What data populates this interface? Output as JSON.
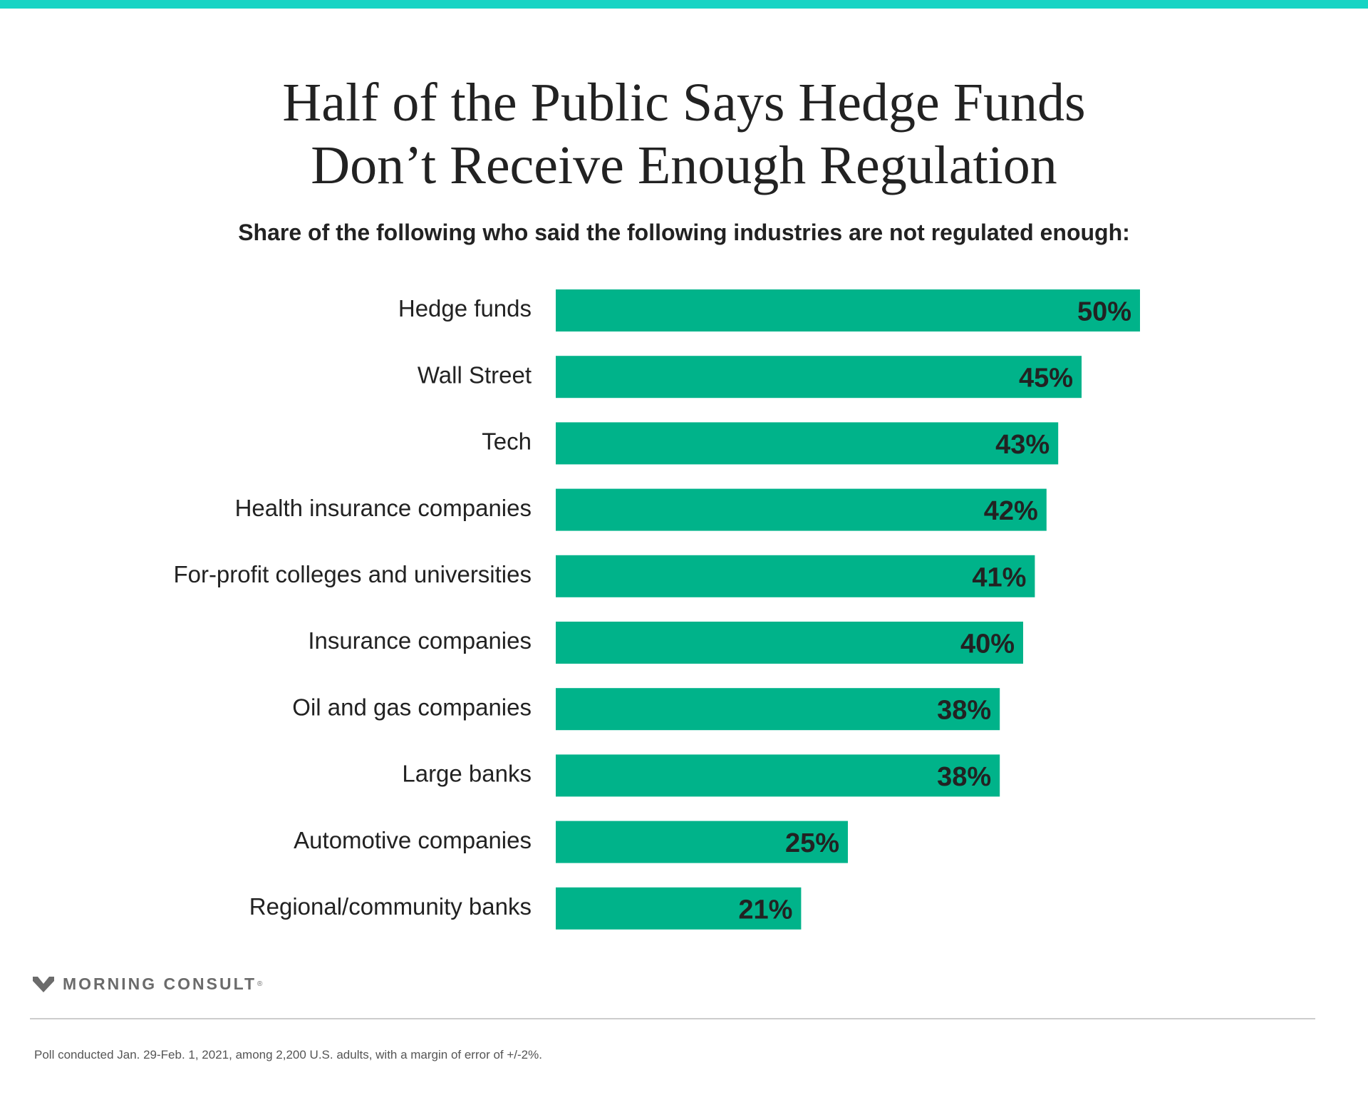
{
  "colors": {
    "accent_top": "#17d4c4",
    "bar": "#00b38a",
    "value_label": "#222222",
    "category_label": "#222222"
  },
  "title_lines": [
    "Half of the Public Says Hedge Funds",
    "Don’t Receive Enough Regulation"
  ],
  "subtitle": "Share of the following who said the following industries are not regulated enough:",
  "brand": {
    "name": "MORNING CONSULT",
    "mark": "®",
    "icon": "morning-consult-logo-icon"
  },
  "footnote": "Poll conducted Jan. 29-Feb. 1, 2021, among 2,200 U.S. adults, with a margin of error of +/-2%.",
  "chart_data": {
    "type": "bar",
    "orientation": "horizontal",
    "title": "Half of the Public Says Hedge Funds Don’t Receive Enough Regulation",
    "subtitle": "Share of the following who said the following industries are not regulated enough:",
    "categories": [
      "Hedge funds",
      "Wall Street",
      "Tech",
      "Health insurance companies",
      "For-profit colleges and universities",
      "Insurance companies",
      "Oil and gas companies",
      "Large banks",
      "Automotive companies",
      "Regional/community banks"
    ],
    "values": [
      50,
      45,
      43,
      42,
      41,
      40,
      38,
      38,
      25,
      21
    ],
    "value_labels": [
      "50%",
      "45%",
      "43%",
      "42%",
      "41%",
      "40%",
      "38%",
      "38%",
      "25%",
      "21%"
    ],
    "unit": "%",
    "xlabel": "",
    "ylabel": "",
    "xlim": [
      0,
      50
    ],
    "grid": false,
    "legend": "none"
  }
}
